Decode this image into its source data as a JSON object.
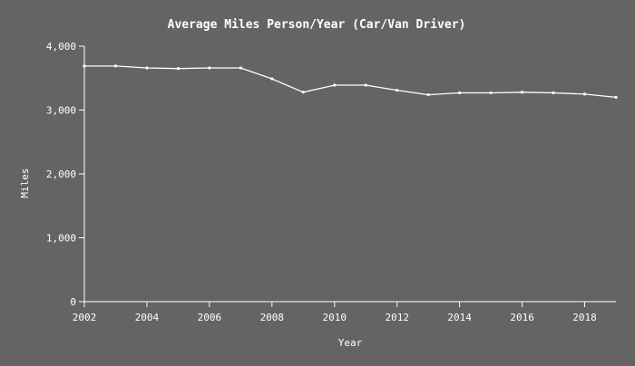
{
  "chart_data": {
    "type": "line",
    "title": "Average Miles Person/Year (Car/Van Driver)",
    "xlabel": "Year",
    "ylabel": "Miles",
    "xlim": [
      2002,
      2019
    ],
    "ylim": [
      0,
      4000
    ],
    "x_ticks": [
      2002,
      2004,
      2006,
      2008,
      2010,
      2012,
      2014,
      2016,
      2018
    ],
    "x_tick_labels": [
      "2002",
      "2004",
      "2006",
      "2008",
      "2010",
      "2012",
      "2014",
      "2016",
      "2018"
    ],
    "y_ticks": [
      0,
      1000,
      2000,
      3000,
      4000
    ],
    "y_tick_labels": [
      "0",
      "1,000",
      "2,000",
      "3,000",
      "4,000"
    ],
    "grid": false,
    "colors": {
      "background": "#646464",
      "foreground": "#ffffff"
    },
    "x": [
      2002,
      2003,
      2004,
      2005,
      2006,
      2007,
      2008,
      2009,
      2010,
      2011,
      2012,
      2013,
      2014,
      2015,
      2016,
      2017,
      2018,
      2019
    ],
    "values": [
      3690,
      3690,
      3660,
      3650,
      3660,
      3660,
      3490,
      3280,
      3390,
      3390,
      3310,
      3240,
      3270,
      3270,
      3280,
      3270,
      3250,
      3200
    ]
  }
}
